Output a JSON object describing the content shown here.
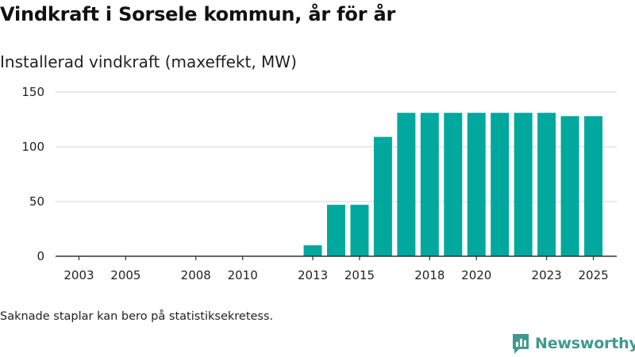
{
  "title": "Vindkraft i Sorsele kommun, år för år",
  "subtitle": "Installerad vindkraft (maxeffekt, MW)",
  "footnote": "Saknade staplar kan bero på statistiksekretess.",
  "brand": "Newsworthy",
  "colors": {
    "bar": "#00a89d",
    "grid": "#dddddd",
    "axis": "#333333",
    "brand": "#3e9a8e"
  },
  "chart_data": {
    "type": "bar",
    "title": "Vindkraft i Sorsele kommun, år för år",
    "ylabel": "Installerad vindkraft (maxeffekt, MW)",
    "xlabel": "",
    "ylim": [
      0,
      150
    ],
    "yticks": [
      0,
      50,
      100,
      150
    ],
    "xrange": [
      2002,
      2026
    ],
    "xticks": [
      2003,
      2005,
      2008,
      2010,
      2013,
      2015,
      2018,
      2020,
      2023,
      2025
    ],
    "categories": [
      2013,
      2014,
      2015,
      2016,
      2017,
      2018,
      2019,
      2020,
      2021,
      2022,
      2023,
      2024,
      2025
    ],
    "values": [
      10,
      47,
      47,
      109,
      131,
      131,
      131,
      131,
      131,
      131,
      131,
      128,
      128
    ],
    "grid": true,
    "legend": "none"
  }
}
